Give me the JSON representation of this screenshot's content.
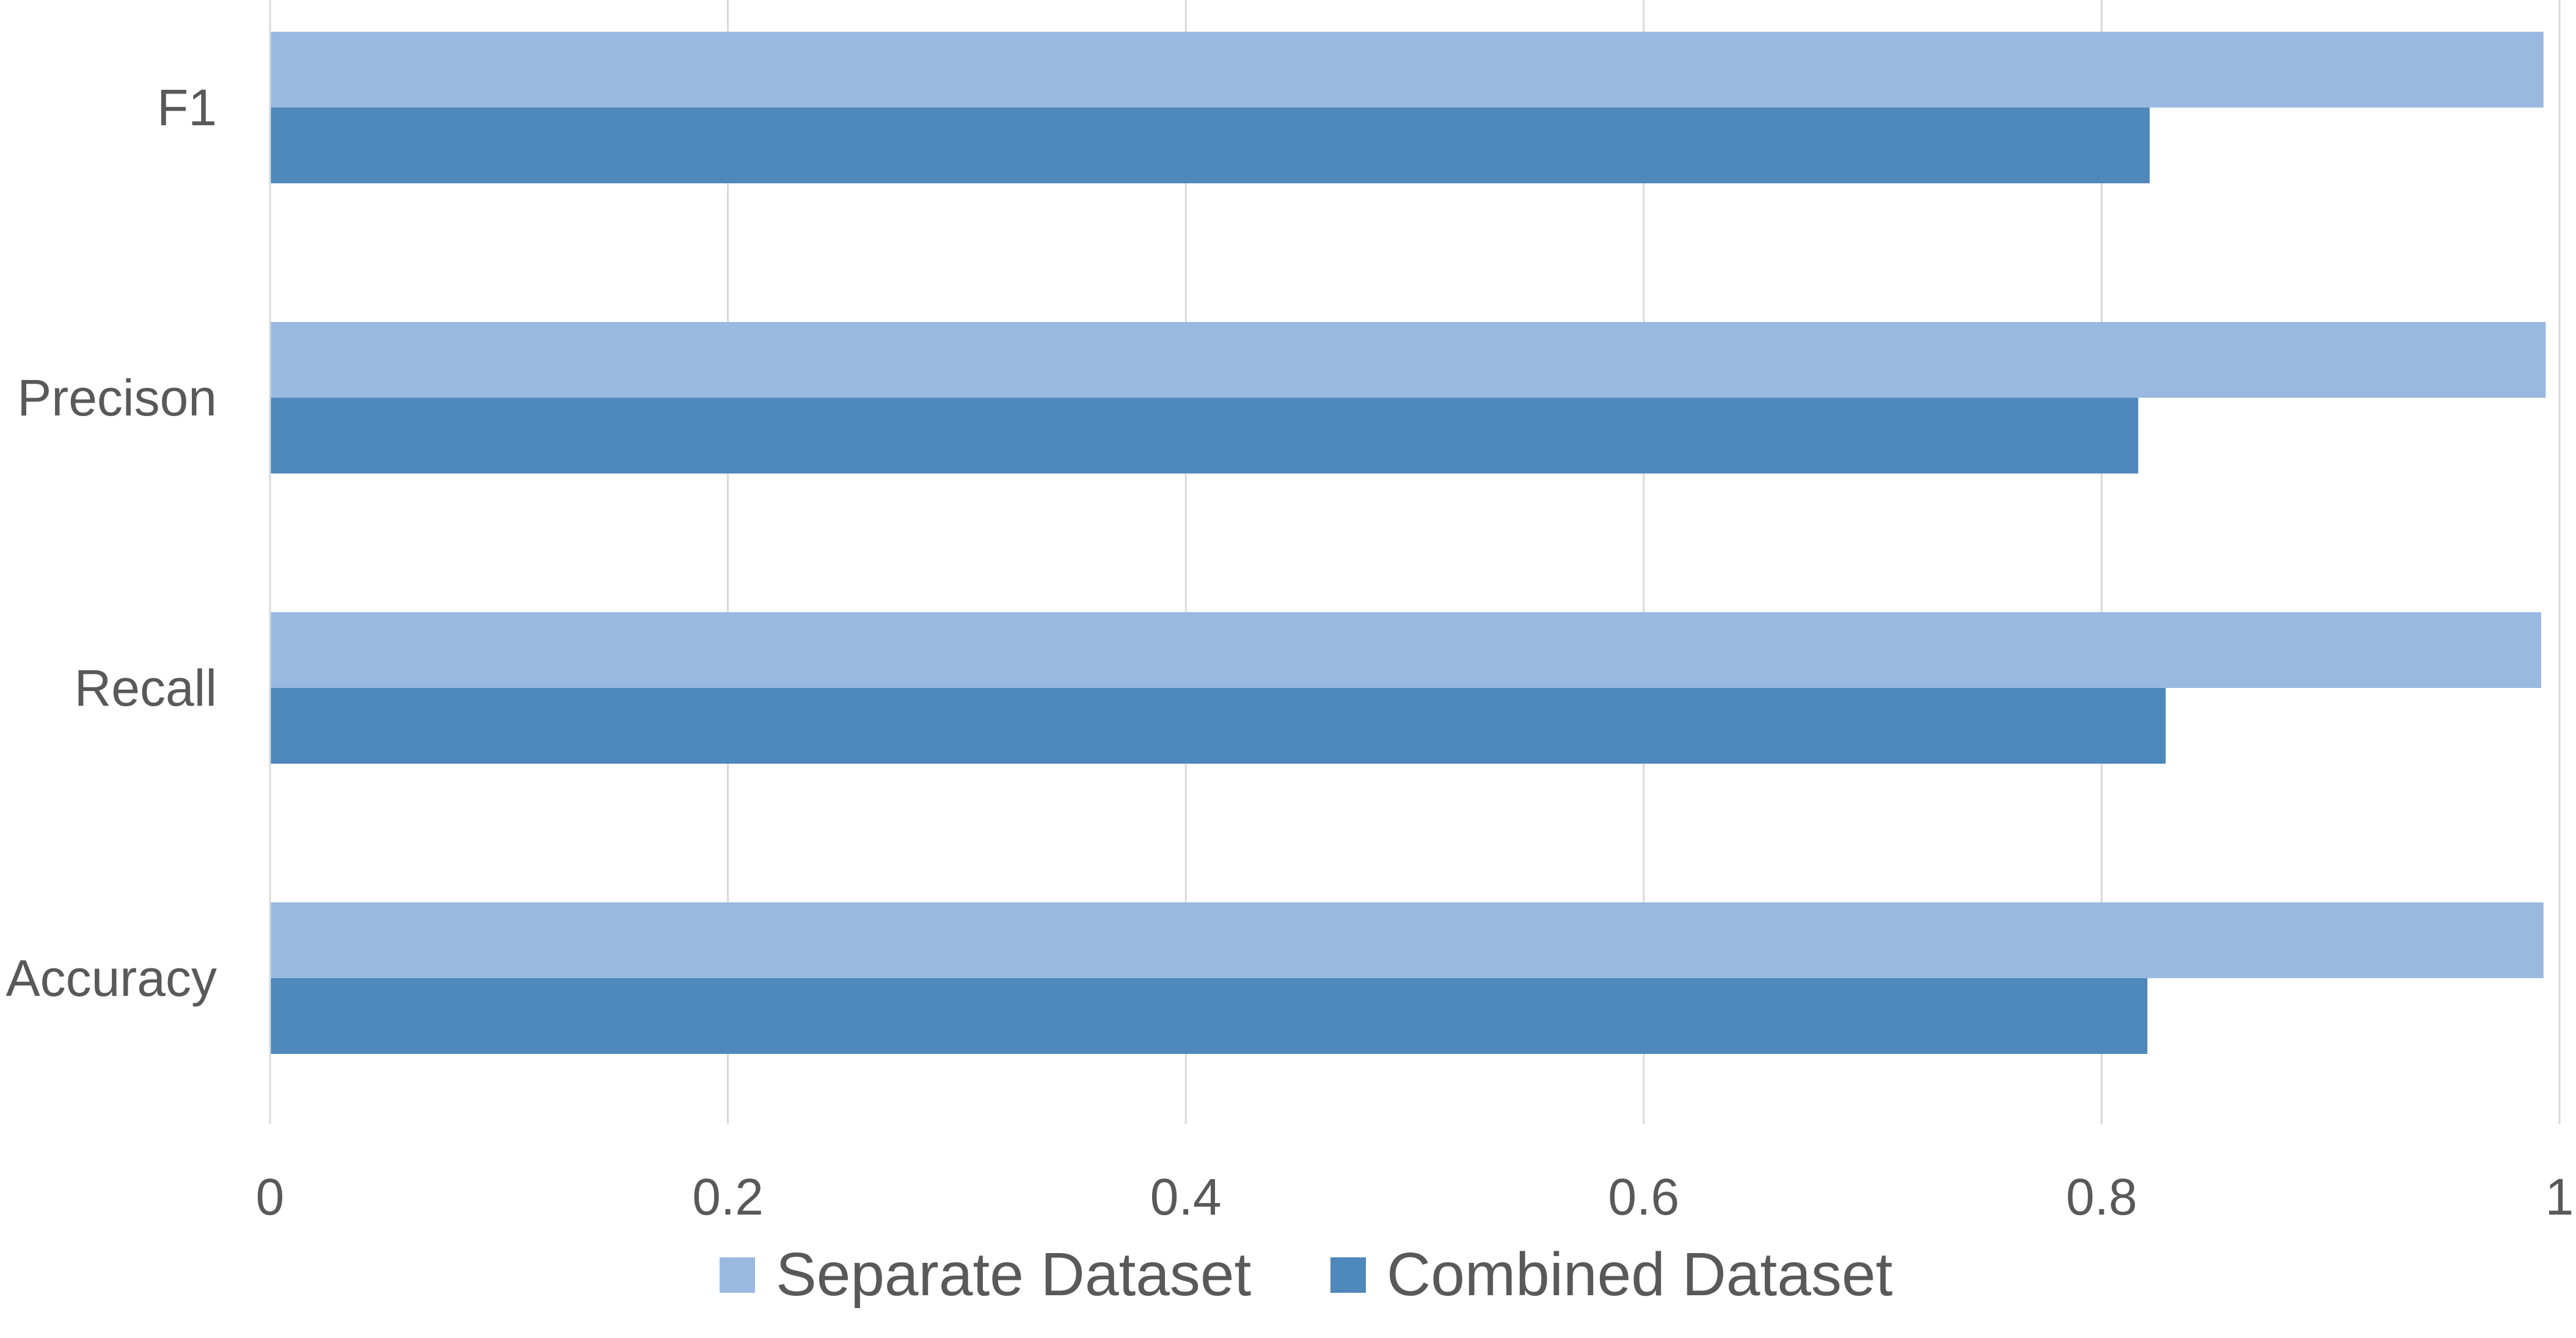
{
  "chart_data": {
    "type": "bar",
    "orientation": "horizontal",
    "categories": [
      "F1",
      "Precison",
      "Recall",
      "Accuracy"
    ],
    "series": [
      {
        "name": "Separate Dataset",
        "color": "#99b9e0",
        "values": [
          0.993,
          0.994,
          0.992,
          0.993
        ]
      },
      {
        "name": "Combined Dataset",
        "color": "#4f88bb",
        "values": [
          0.821,
          0.816,
          0.828,
          0.82
        ]
      }
    ],
    "xlim": [
      0,
      1
    ],
    "xticks": [
      0,
      0.2,
      0.4,
      0.6,
      0.8,
      1
    ],
    "xtick_labels": [
      "0",
      "0.2",
      "0.4",
      "0.6",
      "0.8",
      "1"
    ],
    "grid": "vertical",
    "legend": "bottom",
    "title": "",
    "xlabel": "",
    "ylabel": ""
  }
}
